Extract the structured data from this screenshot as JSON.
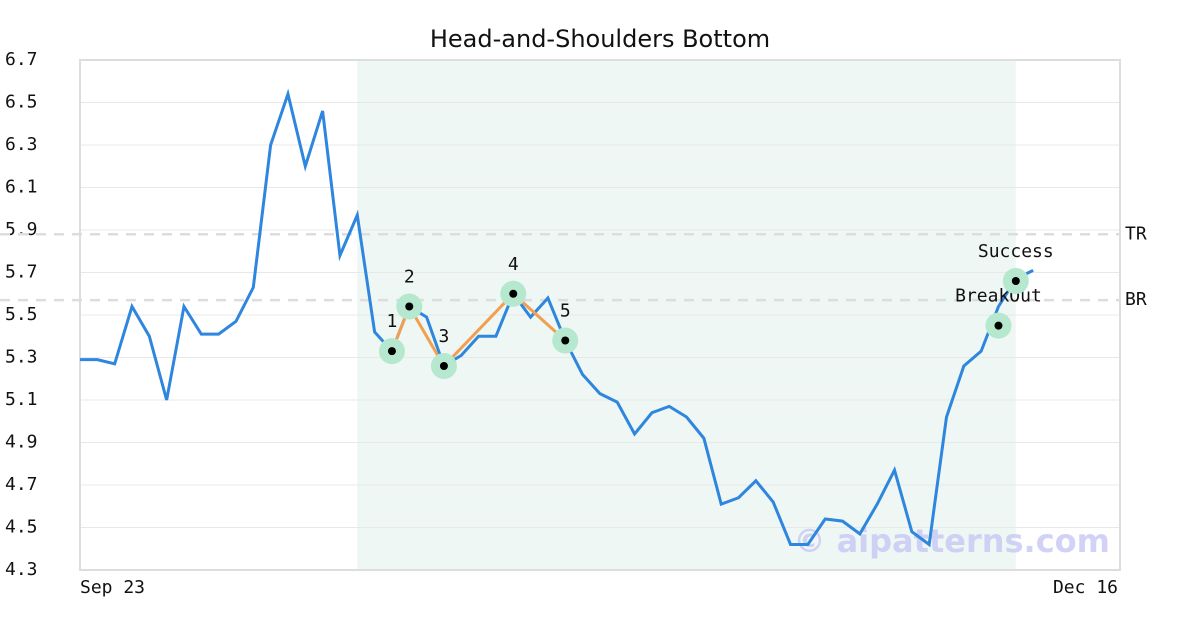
{
  "chart_data": {
    "type": "line",
    "title": "Head-and-Shoulders Bottom",
    "categories": [
      "Sep 23",
      null,
      null,
      null,
      null,
      null,
      null,
      null,
      null,
      null,
      null,
      null,
      null,
      null,
      null,
      null,
      null,
      null,
      null,
      null,
      null,
      null,
      null,
      null,
      null,
      null,
      null,
      null,
      null,
      null,
      null,
      null,
      null,
      null,
      null,
      null,
      null,
      null,
      null,
      null,
      null,
      null,
      null,
      null,
      null,
      null,
      null,
      null,
      null,
      null,
      null,
      null,
      null,
      null,
      null,
      null,
      null,
      null,
      "Dec 16"
    ],
    "values": [
      5.29,
      5.29,
      5.27,
      5.54,
      5.4,
      5.1,
      5.54,
      5.41,
      5.41,
      5.47,
      5.63,
      6.3,
      6.54,
      6.2,
      6.46,
      5.78,
      5.97,
      5.42,
      5.33,
      5.54,
      5.49,
      5.26,
      5.31,
      5.4,
      5.4,
      5.6,
      5.49,
      5.58,
      5.38,
      5.22,
      5.13,
      5.09,
      4.94,
      5.04,
      5.07,
      5.02,
      4.92,
      4.61,
      4.64,
      4.72,
      4.62,
      4.42,
      4.42,
      4.54,
      4.53,
      4.47,
      4.61,
      4.77,
      4.48,
      4.42,
      5.02,
      5.26,
      5.33,
      5.54,
      5.67,
      5.71,
      null,
      null,
      null
    ],
    "color": "#2e86de",
    "highlight_range": [
      16,
      54
    ],
    "pattern": {
      "x": [
        18,
        19,
        21,
        25,
        28
      ],
      "values": [
        5.33,
        5.54,
        5.26,
        5.6,
        5.38
      ],
      "labels": [
        "1",
        "2",
        "3",
        "4",
        "5"
      ],
      "color": "#f0a050"
    },
    "signals": {
      "x": [
        53,
        54
      ],
      "values": [
        5.45,
        5.66
      ],
      "labels": [
        "BreakOut",
        "Success"
      ]
    },
    "levels": [
      {
        "label": "TR",
        "value": 5.88
      },
      {
        "label": "BR",
        "value": 5.57
      }
    ],
    "ylim": [
      4.3,
      6.7
    ],
    "yticks": [
      4.3,
      4.5,
      4.7,
      4.9,
      5.1,
      5.3,
      5.5,
      5.7,
      5.9,
      6.1,
      6.3,
      6.5,
      6.7
    ],
    "grid": true,
    "watermark": "© aipatterns.com"
  }
}
